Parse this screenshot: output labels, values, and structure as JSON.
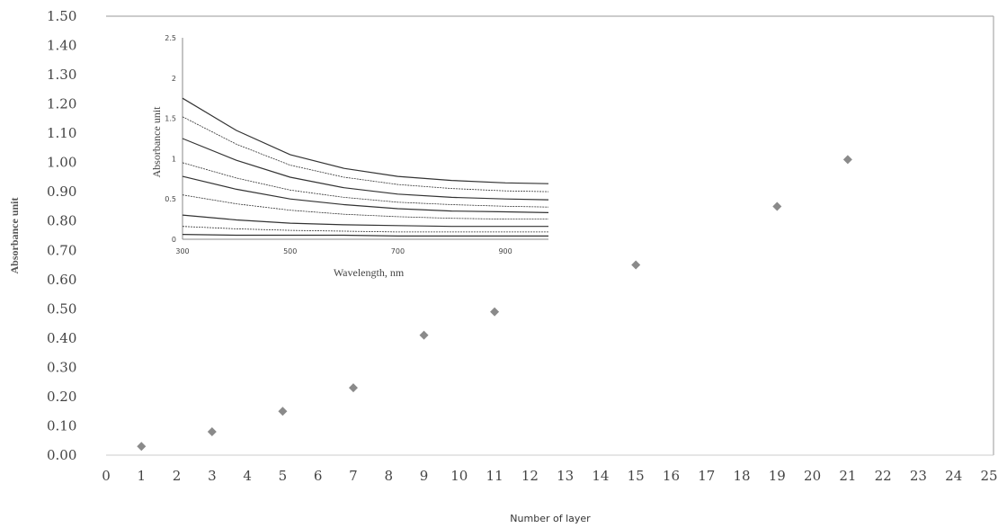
{
  "chart_data": [
    {
      "type": "scatter",
      "xlabel": "Number of layer",
      "ylabel": "Absorbance unit",
      "xlim": [
        0,
        25
      ],
      "ylim": [
        0,
        1.5
      ],
      "x_ticks": [
        0,
        1,
        2,
        3,
        4,
        5,
        6,
        7,
        8,
        9,
        10,
        11,
        12,
        13,
        14,
        15,
        16,
        17,
        18,
        19,
        20,
        21,
        22,
        23,
        24,
        25
      ],
      "y_ticks": [
        "0.00",
        "0.10",
        "0.20",
        "0.30",
        "0.40",
        "0.50",
        "0.60",
        "0.70",
        "0.80",
        "0.90",
        "1.00",
        "1.10",
        "1.20",
        "1.30",
        "1.40",
        "1.50"
      ],
      "marker_color": "#8a8a8a",
      "points": [
        {
          "x": 1,
          "y": 0.03
        },
        {
          "x": 3,
          "y": 0.08
        },
        {
          "x": 5,
          "y": 0.15
        },
        {
          "x": 7,
          "y": 0.23
        },
        {
          "x": 9,
          "y": 0.41
        },
        {
          "x": 11,
          "y": 0.49
        },
        {
          "x": 15,
          "y": 0.65
        },
        {
          "x": 19,
          "y": 0.85
        },
        {
          "x": 21,
          "y": 1.01
        }
      ]
    },
    {
      "type": "line",
      "xlabel": "Wavelength, nm",
      "ylabel": "Absorbance unit",
      "xlim": [
        300,
        980
      ],
      "ylim": [
        0,
        2.5
      ],
      "x_ticks": [
        "300",
        "500",
        "700",
        "900"
      ],
      "y_ticks": [
        "0",
        "0.5",
        "1",
        "1.5",
        "2",
        "2.5"
      ],
      "line_color": "#333333",
      "series": [
        {
          "values": [
            [
              300,
              1.75
            ],
            [
              400,
              1.35
            ],
            [
              500,
              1.05
            ],
            [
              600,
              0.88
            ],
            [
              700,
              0.78
            ],
            [
              800,
              0.73
            ],
            [
              900,
              0.7
            ],
            [
              980,
              0.69
            ]
          ]
        },
        {
          "values": [
            [
              300,
              1.52
            ],
            [
              400,
              1.18
            ],
            [
              500,
              0.92
            ],
            [
              600,
              0.77
            ],
            [
              700,
              0.68
            ],
            [
              800,
              0.63
            ],
            [
              900,
              0.6
            ],
            [
              980,
              0.59
            ]
          ]
        },
        {
          "values": [
            [
              300,
              1.25
            ],
            [
              400,
              0.98
            ],
            [
              500,
              0.77
            ],
            [
              600,
              0.64
            ],
            [
              700,
              0.56
            ],
            [
              800,
              0.52
            ],
            [
              900,
              0.5
            ],
            [
              980,
              0.49
            ]
          ]
        },
        {
          "values": [
            [
              300,
              0.95
            ],
            [
              400,
              0.76
            ],
            [
              500,
              0.61
            ],
            [
              600,
              0.52
            ],
            [
              700,
              0.46
            ],
            [
              800,
              0.43
            ],
            [
              900,
              0.41
            ],
            [
              980,
              0.4
            ]
          ]
        },
        {
          "values": [
            [
              300,
              0.78
            ],
            [
              400,
              0.62
            ],
            [
              500,
              0.5
            ],
            [
              600,
              0.43
            ],
            [
              700,
              0.38
            ],
            [
              800,
              0.35
            ],
            [
              900,
              0.34
            ],
            [
              980,
              0.33
            ]
          ]
        },
        {
          "values": [
            [
              300,
              0.55
            ],
            [
              400,
              0.44
            ],
            [
              500,
              0.36
            ],
            [
              600,
              0.31
            ],
            [
              700,
              0.28
            ],
            [
              800,
              0.26
            ],
            [
              900,
              0.25
            ],
            [
              980,
              0.25
            ]
          ]
        },
        {
          "values": [
            [
              300,
              0.3
            ],
            [
              400,
              0.24
            ],
            [
              500,
              0.2
            ],
            [
              600,
              0.18
            ],
            [
              700,
              0.17
            ],
            [
              800,
              0.16
            ],
            [
              900,
              0.16
            ],
            [
              980,
              0.16
            ]
          ]
        },
        {
          "values": [
            [
              300,
              0.16
            ],
            [
              400,
              0.13
            ],
            [
              500,
              0.11
            ],
            [
              600,
              0.1
            ],
            [
              700,
              0.09
            ],
            [
              800,
              0.09
            ],
            [
              900,
              0.09
            ],
            [
              980,
              0.09
            ]
          ]
        },
        {
          "values": [
            [
              300,
              0.06
            ],
            [
              400,
              0.05
            ],
            [
              500,
              0.05
            ],
            [
              600,
              0.05
            ],
            [
              700,
              0.04
            ],
            [
              800,
              0.04
            ],
            [
              900,
              0.04
            ],
            [
              980,
              0.04
            ]
          ]
        }
      ]
    }
  ]
}
